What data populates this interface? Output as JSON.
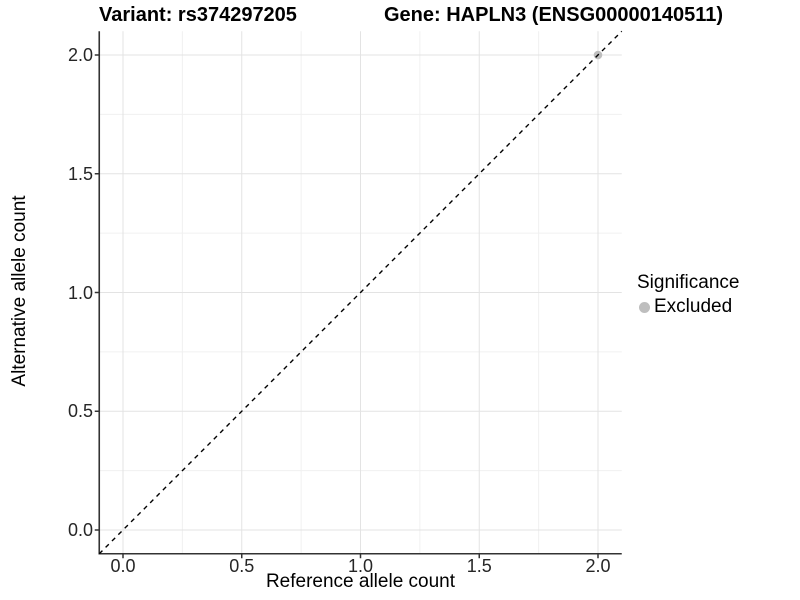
{
  "header": {
    "variant_title": "Variant: rs374297205",
    "gene_title": "Gene: HAPLN3 (ENSG00000140511)"
  },
  "chart_data": {
    "type": "scatter",
    "xlabel": "Reference allele count",
    "ylabel": "Alternative allele count",
    "xlim": [
      -0.1,
      2.1
    ],
    "ylim": [
      -0.1,
      2.1
    ],
    "xtick_values": [
      0,
      0.5,
      1,
      1.5,
      2
    ],
    "xtick_labels": [
      "0.0",
      "0.5",
      "1.0",
      "1.5",
      "2.0"
    ],
    "ytick_values": [
      0,
      0.5,
      1,
      1.5,
      2
    ],
    "ytick_labels": [
      "0.0",
      "0.5",
      "1.0",
      "1.5",
      "2.0"
    ],
    "minor_tick_values": [
      0.25,
      0.75,
      1.25,
      1.75
    ],
    "grid": "major+minor",
    "legend_position": "right",
    "points": [
      {
        "x": 2.0,
        "y": 2.0,
        "series": "Excluded",
        "color": "#bebebe",
        "radius": 4.3
      }
    ],
    "reference_line": {
      "equation": "y = x",
      "style": "dashed",
      "color": "#000000"
    }
  },
  "legend": {
    "title": "Significance",
    "items": [
      {
        "label": "Excluded",
        "color": "#bebebe"
      }
    ]
  },
  "colors": {
    "background": "#ffffff",
    "grid_major": "#e3e3e3",
    "grid_minor": "#f0f0f0",
    "axis_line": "#333333",
    "tick_mark": "#333333",
    "tick_text": "#262626",
    "title_text": "#000000",
    "point": "#bebebe"
  }
}
